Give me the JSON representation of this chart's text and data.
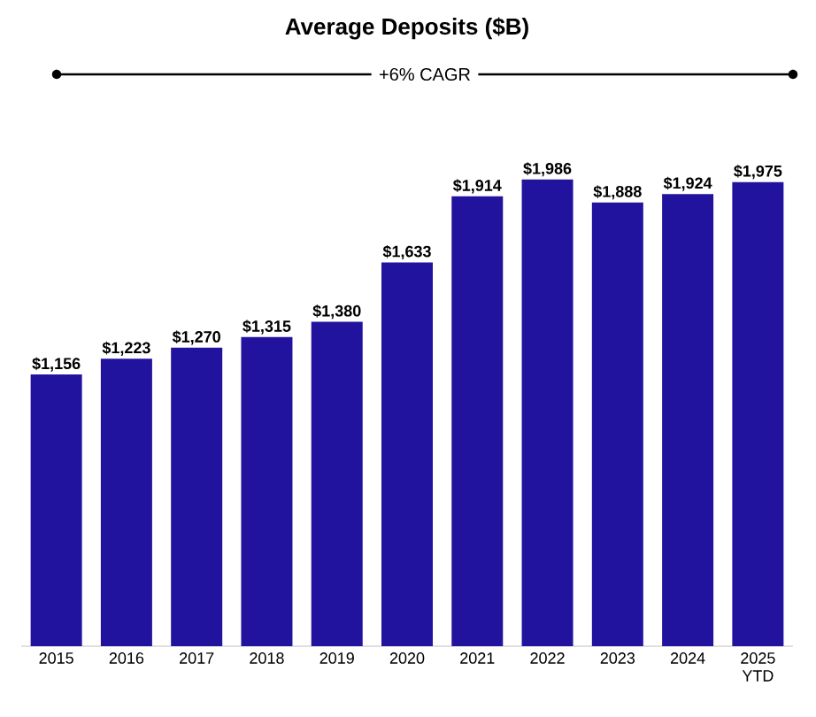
{
  "chart_data": {
    "type": "bar",
    "title": "Average Deposits ($B)",
    "annotations": [
      "+6% CAGR"
    ],
    "categories": [
      "2015",
      "2016",
      "2017",
      "2018",
      "2019",
      "2020",
      "2021",
      "2022",
      "2023",
      "2024",
      "2025 YTD"
    ],
    "values": [
      1156,
      1223,
      1270,
      1315,
      1380,
      1633,
      1914,
      1986,
      1888,
      1924,
      1975
    ],
    "value_labels": [
      "$1,156",
      "$1,223",
      "$1,270",
      "$1,315",
      "$1,380",
      "$1,633",
      "$1,914",
      "$1,986",
      "$1,888",
      "$1,924",
      "$1,975"
    ],
    "color": "#22139f"
  }
}
